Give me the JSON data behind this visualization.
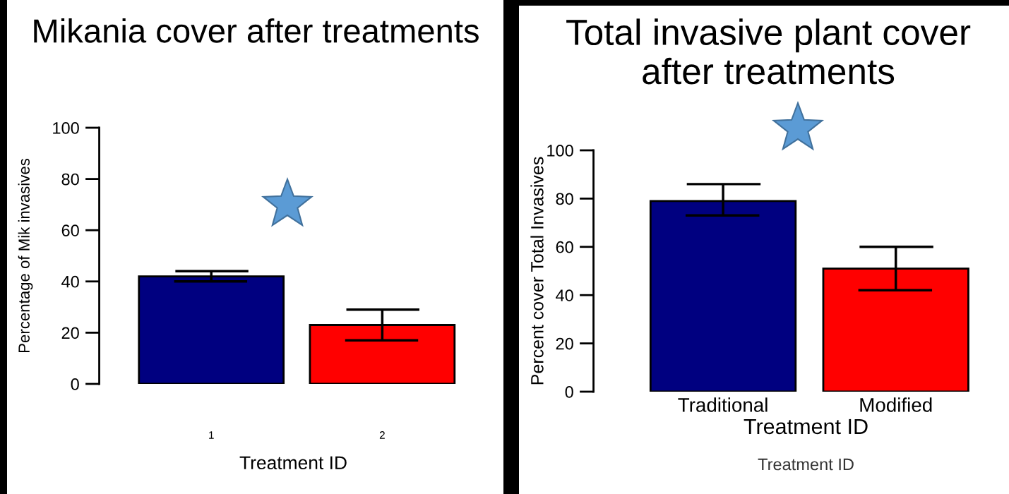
{
  "chart_data": [
    {
      "type": "bar",
      "title": "Mikania cover after treatments",
      "xlabel": "Treatment ID",
      "ylabel": "Percentage of Mik invasives",
      "categories": [
        "1",
        "2"
      ],
      "values": [
        42,
        23
      ],
      "colors": [
        "#000080",
        "#ff0000"
      ],
      "errors": [
        [
          40,
          44
        ],
        [
          17,
          29
        ]
      ],
      "ylim": [
        0,
        100
      ],
      "yticks": [
        0,
        20,
        40,
        60,
        80,
        100
      ],
      "grid": false,
      "legend": false
    },
    {
      "type": "bar",
      "title": "Total invasive plant cover after treatments",
      "xlabel": "Treatment ID",
      "ylabel": "Percent cover Total Invasives",
      "categories": [
        "Traditional",
        "Modified"
      ],
      "values": [
        79,
        51
      ],
      "colors": [
        "#000080",
        "#ff0000"
      ],
      "errors": [
        [
          73,
          86
        ],
        [
          42,
          60
        ]
      ],
      "ylim": [
        0,
        100
      ],
      "yticks": [
        0,
        20,
        40,
        60,
        80,
        100
      ],
      "grid": false,
      "legend": false,
      "annotations": [
        "Treatment ID"
      ]
    }
  ]
}
